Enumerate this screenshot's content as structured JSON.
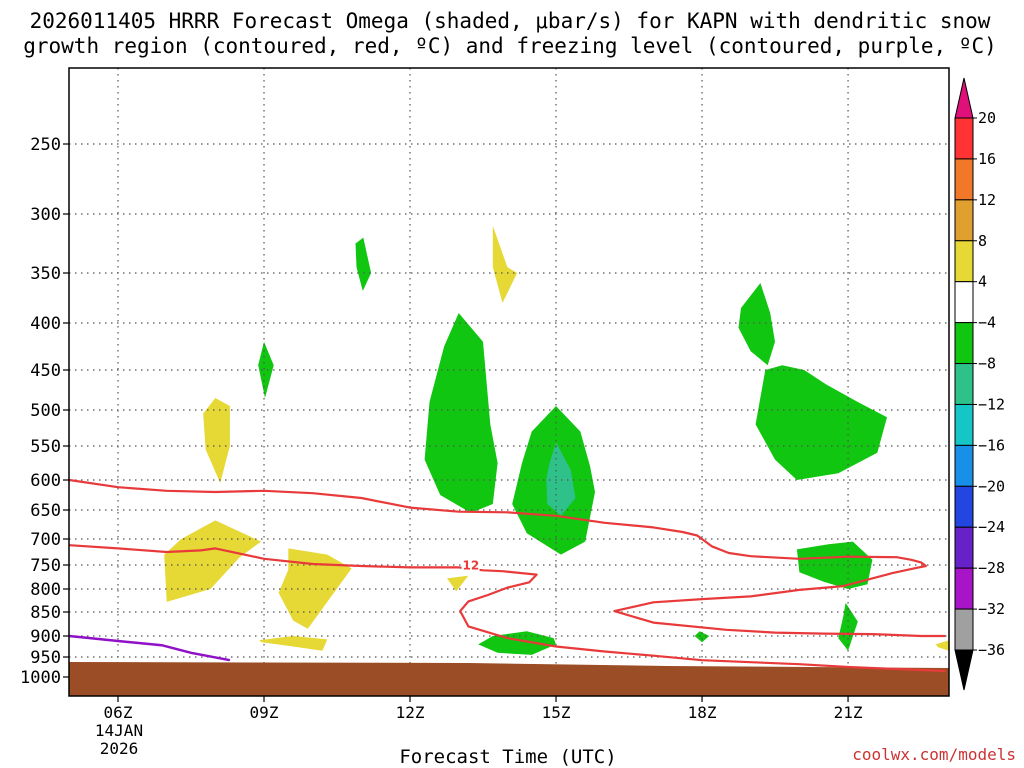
{
  "title_line1": "2026011405 HRRR Forecast Omega (shaded, μbar/s) for KAPN with dendritic snow",
  "title_line2": "growth region (contoured, red, ºC) and freezing level (contoured, purple, ºC)",
  "credit": "coolwx.com/models",
  "chart_data": {
    "type": "time-height cross section",
    "title": "2026011405 HRRR Forecast Omega (shaded, μbar/s) for KAPN with dendritic snow growth region (contoured, red, ºC) and freezing level (contoured, purple, ºC)",
    "xlabel": "Forecast Time (UTC)",
    "ylabel": "",
    "x_range_hours_utc": [
      5,
      23
    ],
    "y_range_hPa": [
      1000,
      200
    ],
    "grid": true,
    "x_ticks": [
      {
        "hour": 6,
        "label": "06Z"
      },
      {
        "hour": 9,
        "label": "09Z"
      },
      {
        "hour": 12,
        "label": "12Z"
      },
      {
        "hour": 15,
        "label": "15Z"
      },
      {
        "hour": 18,
        "label": "18Z"
      },
      {
        "hour": 21,
        "label": "21Z"
      }
    ],
    "date_label_line1": "14JAN",
    "date_label_line2": "2026",
    "y_ticks": [
      250,
      300,
      350,
      400,
      450,
      500,
      550,
      600,
      650,
      700,
      750,
      800,
      850,
      900,
      950,
      1000
    ],
    "colorbar": {
      "labels": [
        "20",
        "16",
        "12",
        "8",
        "4",
        "−4",
        "−8",
        "−12",
        "−16",
        "−20",
        "−24",
        "−28",
        "−32",
        "−36"
      ],
      "bins": [
        {
          "from": 16,
          "to": 20,
          "color": "#ff3333"
        },
        {
          "from": 12,
          "to": 16,
          "color": "#f07828"
        },
        {
          "from": 8,
          "to": 12,
          "color": "#e0a030"
        },
        {
          "from": 4,
          "to": 8,
          "color": "#e6d835"
        },
        {
          "from": -4,
          "to": 4,
          "color": "#ffffff"
        },
        {
          "from": -8,
          "to": -4,
          "color": "#11c611"
        },
        {
          "from": -12,
          "to": -8,
          "color": "#2ec28a"
        },
        {
          "from": -16,
          "to": -12,
          "color": "#16c6c6"
        },
        {
          "from": -20,
          "to": -16,
          "color": "#1890e8"
        },
        {
          "from": -24,
          "to": -20,
          "color": "#2346e0"
        },
        {
          "from": -28,
          "to": -24,
          "color": "#6622c8"
        },
        {
          "from": -32,
          "to": -28,
          "color": "#a814c8"
        },
        {
          "from": -36,
          "to": -32,
          "color": "#a0a0a0"
        }
      ],
      "over_color": "#e0107a",
      "under_color": "#000000"
    },
    "shaded_regions": [
      {
        "level": "-8 to -4",
        "color": "#11c611",
        "points": [
          [
            10.88,
            325
          ],
          [
            11.04,
            320
          ],
          [
            11.2,
            350
          ],
          [
            11.03,
            368
          ],
          [
            10.9,
            345
          ]
        ]
      },
      {
        "level": "-8 to -4",
        "color": "#11c611",
        "points": [
          [
            9.0,
            420
          ],
          [
            9.2,
            445
          ],
          [
            9.02,
            485
          ],
          [
            8.88,
            445
          ]
        ]
      },
      {
        "level": "-8 to -4",
        "color": "#11c611",
        "points": [
          [
            13.0,
            390
          ],
          [
            13.5,
            420
          ],
          [
            13.65,
            520
          ],
          [
            13.8,
            575
          ],
          [
            13.7,
            640
          ],
          [
            13.25,
            655
          ],
          [
            12.62,
            625
          ],
          [
            12.3,
            570
          ],
          [
            12.4,
            490
          ],
          [
            12.7,
            425
          ]
        ]
      },
      {
        "level": "-8 to -4",
        "color": "#11c611",
        "points": [
          [
            14.5,
            530
          ],
          [
            15.0,
            495
          ],
          [
            15.5,
            530
          ],
          [
            15.7,
            580
          ],
          [
            15.8,
            620
          ],
          [
            15.6,
            705
          ],
          [
            15.1,
            730
          ],
          [
            14.4,
            690
          ],
          [
            14.1,
            640
          ],
          [
            14.3,
            575
          ]
        ]
      },
      {
        "level": "-12 to -8",
        "color": "#2ec28a",
        "points": [
          [
            15.0,
            545
          ],
          [
            15.3,
            585
          ],
          [
            15.4,
            630
          ],
          [
            15.1,
            660
          ],
          [
            14.82,
            640
          ],
          [
            14.8,
            600
          ],
          [
            14.85,
            580
          ]
        ]
      },
      {
        "level": "-8 to -4",
        "color": "#11c611",
        "points": [
          [
            18.8,
            385
          ],
          [
            19.2,
            360
          ],
          [
            19.4,
            390
          ],
          [
            19.5,
            420
          ],
          [
            19.35,
            445
          ],
          [
            19.0,
            430
          ],
          [
            18.75,
            405
          ]
        ]
      },
      {
        "level": "-8 to -4",
        "color": "#11c611",
        "points": [
          [
            19.3,
            450
          ],
          [
            19.65,
            445
          ],
          [
            20.1,
            450
          ],
          [
            20.55,
            468
          ],
          [
            21.2,
            490
          ],
          [
            21.8,
            510
          ],
          [
            21.6,
            560
          ],
          [
            20.8,
            590
          ],
          [
            19.95,
            600
          ],
          [
            19.5,
            570
          ],
          [
            19.1,
            520
          ]
        ]
      },
      {
        "level": "-8 to -4",
        "color": "#11c611",
        "points": [
          [
            19.95,
            720
          ],
          [
            20.6,
            710
          ],
          [
            21.1,
            705
          ],
          [
            21.5,
            740
          ],
          [
            21.4,
            790
          ],
          [
            21.0,
            800
          ],
          [
            20.5,
            785
          ],
          [
            20.0,
            765
          ]
        ]
      },
      {
        "level": "-8 to -4",
        "color": "#11c611",
        "points": [
          [
            20.95,
            830
          ],
          [
            21.2,
            870
          ],
          [
            21.0,
            935
          ],
          [
            20.8,
            905
          ],
          [
            20.9,
            860
          ]
        ]
      },
      {
        "level": "-8 to -4",
        "color": "#11c611",
        "points": [
          [
            14.4,
            890
          ],
          [
            14.95,
            905
          ],
          [
            15.0,
            920
          ],
          [
            14.5,
            945
          ],
          [
            13.8,
            940
          ],
          [
            13.4,
            920
          ],
          [
            13.7,
            900
          ]
        ]
      },
      {
        "level": "-8 to -4",
        "color": "#11c611",
        "points": [
          [
            17.95,
            890
          ],
          [
            18.15,
            900
          ],
          [
            18.0,
            915
          ],
          [
            17.85,
            900
          ]
        ]
      },
      {
        "level": "4 to 8",
        "color": "#e6d835",
        "points": [
          [
            8.0,
            485
          ],
          [
            8.3,
            495
          ],
          [
            8.3,
            550
          ],
          [
            8.1,
            605
          ],
          [
            7.8,
            555
          ],
          [
            7.75,
            505
          ]
        ]
      },
      {
        "level": "4 to 8",
        "color": "#e6d835",
        "points": [
          [
            13.7,
            310
          ],
          [
            14.0,
            345
          ],
          [
            14.2,
            350
          ],
          [
            13.9,
            380
          ],
          [
            13.7,
            345
          ]
        ]
      },
      {
        "level": "4 to 8",
        "color": "#e6d835",
        "points": [
          [
            7.3,
            700
          ],
          [
            8.0,
            668
          ],
          [
            8.94,
            705
          ],
          [
            8.5,
            735
          ],
          [
            7.9,
            800
          ],
          [
            7.0,
            828
          ],
          [
            6.95,
            730
          ]
        ]
      },
      {
        "level": "4 to 8",
        "color": "#e6d835",
        "points": [
          [
            9.5,
            718
          ],
          [
            10.3,
            730
          ],
          [
            10.8,
            757
          ],
          [
            9.9,
            885
          ],
          [
            9.6,
            868
          ],
          [
            9.3,
            808
          ],
          [
            9.5,
            760
          ]
        ]
      },
      {
        "level": "4 to 8",
        "color": "#e6d835",
        "points": [
          [
            8.9,
            910
          ],
          [
            9.6,
            900
          ],
          [
            10.3,
            908
          ],
          [
            10.2,
            935
          ],
          [
            9.6,
            925
          ],
          [
            8.95,
            915
          ]
        ]
      },
      {
        "level": "4 to 8",
        "color": "#e6d835",
        "points": [
          [
            12.76,
            778
          ],
          [
            13.2,
            772
          ],
          [
            12.95,
            805
          ]
        ]
      },
      {
        "level": "4 to 8",
        "color": "#e6d835",
        "points": [
          [
            22.8,
            920
          ],
          [
            23.1,
            910
          ],
          [
            23.1,
            935
          ],
          [
            22.85,
            927
          ]
        ]
      }
    ],
    "dgz_contours": [
      {
        "label": "-12",
        "points": [
          [
            5.0,
            600
          ],
          [
            6.0,
            612
          ],
          [
            7.0,
            618
          ],
          [
            8.0,
            620
          ],
          [
            9.0,
            618
          ],
          [
            10.0,
            622
          ],
          [
            11.0,
            630
          ],
          [
            12.0,
            646
          ],
          [
            13.0,
            653
          ],
          [
            14.0,
            654
          ],
          [
            15.0,
            660
          ],
          [
            16.0,
            672
          ],
          [
            17.0,
            680
          ],
          [
            17.6,
            688
          ],
          [
            17.9,
            694
          ],
          [
            18.2,
            714
          ],
          [
            18.55,
            727
          ],
          [
            19.0,
            733
          ],
          [
            20.0,
            738
          ],
          [
            21.0,
            734
          ],
          [
            22.0,
            735
          ],
          [
            22.3,
            740
          ],
          [
            22.5,
            745
          ],
          [
            22.6,
            752
          ],
          [
            22.4,
            756
          ],
          [
            21.9,
            767
          ],
          [
            20.9,
            794
          ],
          [
            20.0,
            802
          ],
          [
            19.0,
            816
          ],
          [
            18.0,
            822
          ],
          [
            17.0,
            829
          ],
          [
            16.2,
            848
          ],
          [
            17.0,
            872
          ],
          [
            18.5,
            887
          ],
          [
            19.5,
            893
          ],
          [
            20.5,
            895
          ],
          [
            21.5,
            896
          ],
          [
            22.5,
            900
          ],
          [
            23.0,
            900
          ]
        ]
      },
      {
        "label": "-12",
        "points": [
          [
            5.0,
            712
          ],
          [
            6.0,
            718
          ],
          [
            7.0,
            725
          ],
          [
            7.7,
            722
          ],
          [
            8.0,
            718
          ],
          [
            9.0,
            738
          ],
          [
            10.0,
            748
          ],
          [
            11.0,
            752
          ],
          [
            12.0,
            755
          ],
          [
            13.0,
            755
          ],
          [
            13.5,
            761
          ],
          [
            13.9,
            763
          ],
          [
            14.6,
            770
          ],
          [
            14.45,
            786
          ],
          [
            14.0,
            797
          ],
          [
            13.6,
            813
          ],
          [
            13.2,
            827
          ],
          [
            13.03,
            848
          ],
          [
            13.2,
            880
          ],
          [
            14.0,
            905
          ],
          [
            15.0,
            925
          ],
          [
            16.0,
            937
          ],
          [
            17.0,
            947
          ],
          [
            18.0,
            958
          ],
          [
            19.0,
            963
          ],
          [
            20.0,
            968
          ],
          [
            21.0,
            975
          ],
          [
            22.0,
            980
          ],
          [
            23.0,
            985
          ]
        ]
      }
    ],
    "freezing_level": {
      "label": "0",
      "points": [
        [
          5.0,
          900
        ],
        [
          6.0,
          912
        ],
        [
          6.9,
          922
        ],
        [
          7.5,
          940
        ],
        [
          8.3,
          958
        ]
      ]
    },
    "contour_label": "12",
    "contour_label_position": [
      13.1,
      755
    ],
    "terrain_surface_hPa": 965
  }
}
